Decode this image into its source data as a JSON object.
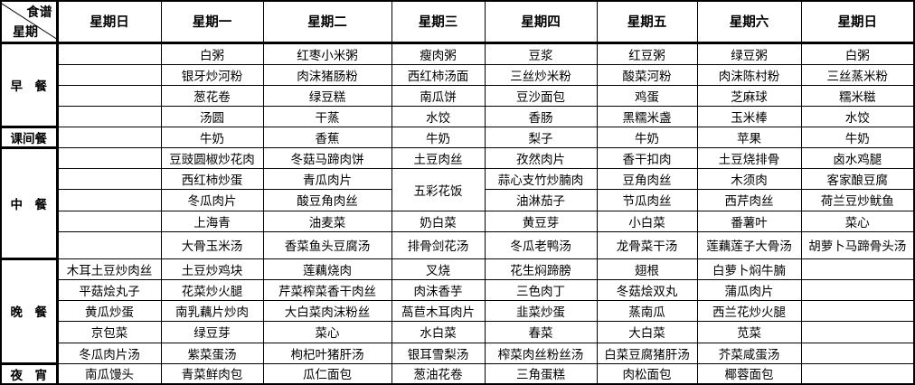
{
  "header": {
    "corner_top": "食谱",
    "corner_bottom": "星期",
    "days": [
      "星期日",
      "星期一",
      "星期二",
      "星期三",
      "星期四",
      "星期五",
      "星期六",
      "星期日"
    ]
  },
  "sections": [
    {
      "label": "早　餐",
      "rows": [
        [
          "",
          "白粥",
          "红枣小米粥",
          "瘦肉粥",
          "豆浆",
          "红豆粥",
          "绿豆粥",
          "白粥"
        ],
        [
          "",
          "银牙炒河粉",
          "肉沫猪肠粉",
          "西红柿汤面",
          "三丝炒米粉",
          "酸菜河粉",
          "肉沫陈村粉",
          "三丝蒸米粉"
        ],
        [
          "",
          "葱花卷",
          "绿豆糕",
          "南瓜饼",
          "豆沙面包",
          "鸡蛋",
          "芝麻球",
          "糯米糍"
        ],
        [
          "",
          "汤圆",
          "干蒸",
          "水饺",
          "香肠",
          "黑糯米盏",
          "玉米棒",
          "水饺"
        ]
      ]
    },
    {
      "label": "课间餐",
      "rows": [
        [
          "",
          "牛奶",
          "香蕉",
          "牛奶",
          "梨子",
          "牛奶",
          "苹果",
          "牛奶"
        ]
      ]
    },
    {
      "label": "中　餐",
      "rows": [
        [
          "",
          "豆豉圆椒炒花肉",
          "冬菇马蹄肉饼",
          "土豆肉丝",
          "孜然肉片",
          "香干扣肉",
          "土豆烧排骨",
          "卤水鸡腿"
        ],
        [
          "",
          "西红柿炒蛋",
          "青瓜肉片",
          "五彩花饭",
          "蒜心支竹炒腩肉",
          "豆角肉丝",
          "木须肉",
          "客家酿豆腐"
        ],
        [
          "",
          "冬瓜肉片",
          "酸豆角肉丝",
          null,
          "油淋茄子",
          "节瓜肉丝",
          "西芹肉丝",
          "荷兰豆炒鱿鱼"
        ],
        [
          "",
          "上海青",
          "油麦菜",
          "奶白菜",
          "黄豆芽",
          "小白菜",
          "番薯叶",
          "菜心"
        ],
        [
          "",
          "大骨玉米汤",
          "香菜鱼头豆腐汤",
          "排骨剑花汤",
          "冬瓜老鸭汤",
          "龙骨菜干汤",
          "莲藕莲子大骨汤",
          "胡萝卜马蹄骨头汤"
        ]
      ]
    },
    {
      "label": "晚　餐",
      "rows": [
        [
          "木耳土豆炒肉丝",
          "土豆炒鸡块",
          "莲藕烧肉",
          "叉烧",
          "花生焖蹄膀",
          "翅根",
          "白萝卜焖牛腩",
          ""
        ],
        [
          "平菇烩丸子",
          "花菜炒火腿",
          "芹菜榨菜香干肉丝",
          "肉沫香芋",
          "三色肉丁",
          "冬菇烩双丸",
          "蒲瓜肉片",
          ""
        ],
        [
          "黄瓜炒蛋",
          "南乳藕片炒肉",
          "大白菜肉沫粉丝",
          "萵苣木耳肉片",
          "韭菜炒蛋",
          "蒸南瓜",
          "西兰花炒火腿",
          ""
        ],
        [
          "京包菜",
          "绿豆芽",
          "菜心",
          "水白菜",
          "春菜",
          "大白菜",
          "苋菜",
          ""
        ],
        [
          "冬瓜肉片汤",
          "紫菜蛋汤",
          "枸杞叶猪肝汤",
          "银耳雪梨汤",
          "榨菜肉丝粉丝汤",
          "白菜豆腐猪肝汤",
          "芥菜咸蛋汤",
          ""
        ]
      ]
    },
    {
      "label": "夜　宵",
      "rows": [
        [
          "南瓜馒头",
          "青菜鲜肉包",
          "瓜仁面包",
          "葱油花卷",
          "三角蛋糕",
          "肉松面包",
          "椰蓉面包",
          ""
        ]
      ]
    }
  ]
}
